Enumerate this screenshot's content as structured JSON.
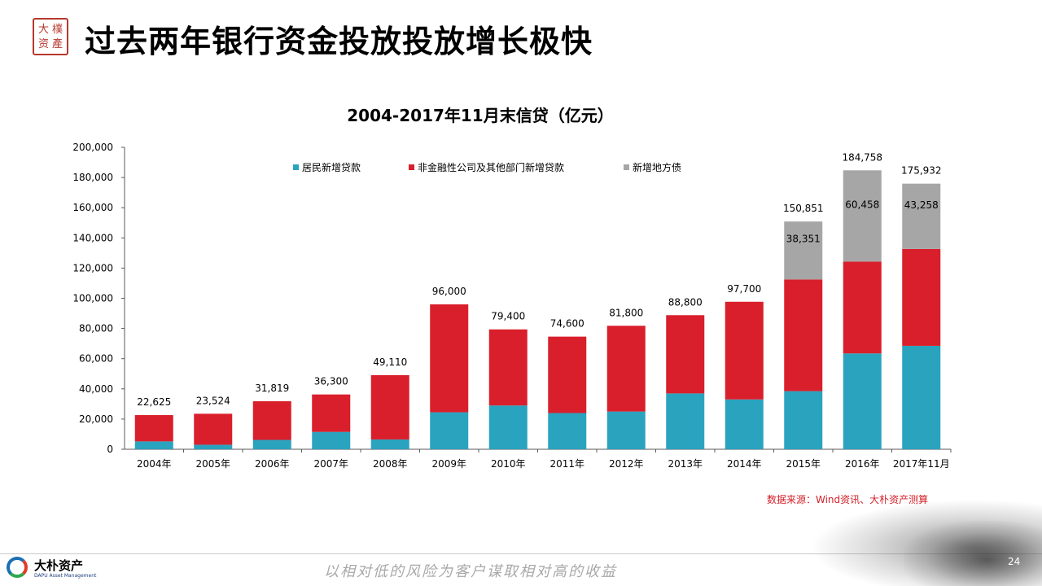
{
  "seal_text": [
    "大",
    "樸",
    "资",
    "產"
  ],
  "slide_title": "过去两年银行资金投放投放增长极快",
  "chart_data": {
    "type": "bar",
    "stacked": true,
    "title": "2004-2017年11月末信贷（亿元）",
    "xlabel": "",
    "ylabel": "",
    "ylim": [
      0,
      200000
    ],
    "yticks": [
      "0",
      "20,000",
      "40,000",
      "60,000",
      "80,000",
      "100,000",
      "120,000",
      "140,000",
      "160,000",
      "180,000",
      "200,000"
    ],
    "grid": false,
    "legend_position": "top",
    "categories": [
      "2004年",
      "2005年",
      "2006年",
      "2007年",
      "2008年",
      "2009年",
      "2010年",
      "2011年",
      "2012年",
      "2013年",
      "2014年",
      "2015年",
      "2016年",
      "2017年11月"
    ],
    "series": [
      {
        "name": "居民新增贷款",
        "color": "#2aa3bf",
        "values": [
          5200,
          3000,
          6200,
          11500,
          6500,
          24500,
          29000,
          24000,
          25000,
          37000,
          33000,
          38500,
          63500,
          68500
        ]
      },
      {
        "name": "非金融性公司及其他部门新增贷款",
        "color": "#d91f2b",
        "values": [
          17425,
          20524,
          25619,
          24800,
          42610,
          71500,
          50400,
          50600,
          56800,
          51800,
          64700,
          74000,
          60800,
          64174
        ]
      },
      {
        "name": "新增地方债",
        "color": "#a6a6a6",
        "values": [
          0,
          0,
          0,
          0,
          0,
          0,
          0,
          0,
          0,
          0,
          0,
          38351,
          60458,
          43258
        ]
      }
    ],
    "total_labels": [
      "22,625",
      "23,524",
      "31,819",
      "36,300",
      "49,110",
      "96,000",
      "79,400",
      "74,600",
      "81,800",
      "88,800",
      "97,700",
      "150,851",
      "184,758",
      "175,932"
    ],
    "segment_labels": [
      "",
      "",
      "",
      "",
      "",
      "",
      "",
      "",
      "",
      "",
      "",
      "38,351",
      "60,458",
      "43,258"
    ]
  },
  "source_note": "数据来源：Wind资讯、大朴资产测算",
  "logo": {
    "name": "大朴资产",
    "en": "DAPU Asset Management"
  },
  "slogan": "以相对低的风险为客户谋取相对高的收益",
  "page_number": "24"
}
